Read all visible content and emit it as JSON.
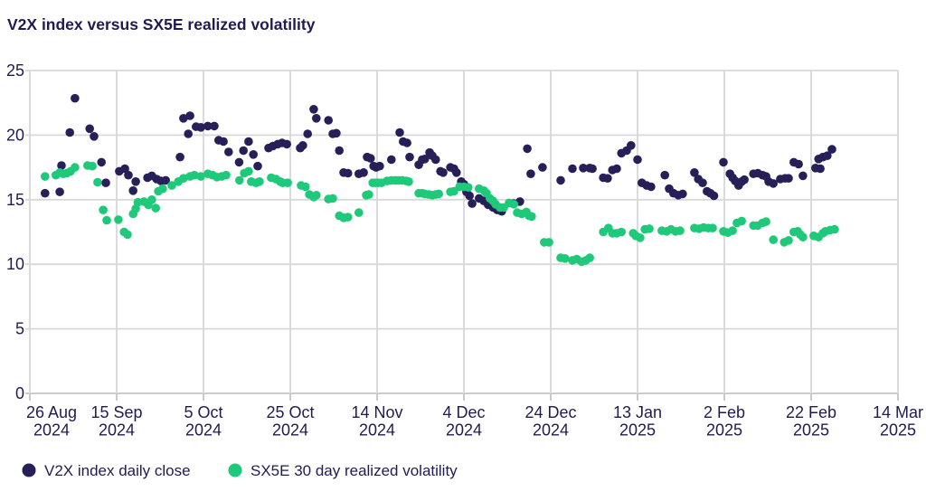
{
  "colors": {
    "navy": "#272058",
    "green": "#1ec97a",
    "text": "#221b52",
    "grid": "#d8d8d8",
    "background": "#ffffff"
  },
  "legend": {
    "items": [
      {
        "label": "V2X index daily close",
        "color": "#272058"
      },
      {
        "label": "SX5E 30 day realized volatility",
        "color": "#1ec97a"
      }
    ]
  },
  "chart_data": {
    "type": "scatter",
    "title": "V2X index versus SX5E realized volatility",
    "xlabel": "",
    "ylabel": "",
    "grid": true,
    "legend_position": "bottom-left",
    "marker": {
      "shape": "circle",
      "radius": 4.8
    },
    "y_axis": {
      "range": [
        0,
        25
      ],
      "ticks": [
        0,
        5,
        10,
        15,
        20,
        25
      ]
    },
    "x_axis": {
      "unit": "calendar days since 26 Aug 2024",
      "range": [
        0,
        200
      ],
      "ticks": [
        {
          "d": 0,
          "label": [
            "26 Aug",
            "2024"
          ]
        },
        {
          "d": 20,
          "label": [
            "15 Sep",
            "2024"
          ]
        },
        {
          "d": 40,
          "label": [
            "5 Oct",
            "2024"
          ]
        },
        {
          "d": 60,
          "label": [
            "25 Oct",
            "2024"
          ]
        },
        {
          "d": 80,
          "label": [
            "14 Nov",
            "2024"
          ]
        },
        {
          "d": 100,
          "label": [
            "4 Dec",
            "2024"
          ]
        },
        {
          "d": 120,
          "label": [
            "24 Dec",
            "2024"
          ]
        },
        {
          "d": 140,
          "label": [
            "13 Jan",
            "2025"
          ]
        },
        {
          "d": 160,
          "label": [
            "2 Feb",
            "2025"
          ]
        },
        {
          "d": 180,
          "label": [
            "22 Feb",
            "2025"
          ]
        },
        {
          "d": 200,
          "label": [
            "14 Mar",
            "2025"
          ]
        }
      ]
    },
    "series": [
      {
        "name": "V2X index daily close",
        "color": "#272058",
        "points": [
          [
            3.5,
            15.5
          ],
          [
            6.9,
            15.6
          ],
          [
            7.3,
            17.65
          ],
          [
            9.2,
            20.2
          ],
          [
            10.4,
            22.85
          ],
          [
            13.8,
            20.5
          ],
          [
            14.8,
            19.9
          ],
          [
            16.5,
            17.9
          ],
          [
            17.5,
            16.3
          ],
          [
            20.6,
            17.2
          ],
          [
            21.9,
            17.4
          ],
          [
            22.7,
            16.9
          ],
          [
            23.8,
            15.7
          ],
          [
            24.4,
            16.4
          ],
          [
            27.1,
            16.7
          ],
          [
            28.1,
            16.85
          ],
          [
            29.2,
            16.6
          ],
          [
            30.2,
            16.45
          ],
          [
            31.3,
            16.5
          ],
          [
            34.6,
            18.3
          ],
          [
            35.4,
            21.3
          ],
          [
            36.5,
            20.1
          ],
          [
            36.9,
            21.5
          ],
          [
            38.3,
            20.65
          ],
          [
            39.4,
            20.6
          ],
          [
            41,
            20.7
          ],
          [
            42.5,
            20.7
          ],
          [
            43.5,
            19.6
          ],
          [
            44.6,
            19.5
          ],
          [
            45.8,
            18.7
          ],
          [
            48.2,
            17.9
          ],
          [
            49.2,
            18.8
          ],
          [
            50.4,
            19.5
          ],
          [
            51.5,
            18.5
          ],
          [
            52.5,
            17.6
          ],
          [
            55,
            19
          ],
          [
            56,
            19.15
          ],
          [
            57.1,
            19.3
          ],
          [
            58.1,
            19.4
          ],
          [
            59.2,
            19.3
          ],
          [
            62.3,
            19
          ],
          [
            62.9,
            19.2
          ],
          [
            64,
            20.1
          ],
          [
            65.4,
            22
          ],
          [
            66,
            21.3
          ],
          [
            68.8,
            21.15
          ],
          [
            69.8,
            20.1
          ],
          [
            70.6,
            20.15
          ],
          [
            71.3,
            18.8
          ],
          [
            72.3,
            17.1
          ],
          [
            73.3,
            17.05
          ],
          [
            75.8,
            17
          ],
          [
            76.9,
            17.1
          ],
          [
            77.7,
            18.3
          ],
          [
            78.5,
            18.2
          ],
          [
            79.2,
            17.6
          ],
          [
            79.8,
            17.5
          ],
          [
            80.6,
            17.6
          ],
          [
            83.3,
            18.1
          ],
          [
            85.2,
            20.2
          ],
          [
            86,
            19.5
          ],
          [
            86.9,
            19.4
          ],
          [
            87.5,
            18.3
          ],
          [
            89.6,
            17.7
          ],
          [
            90.4,
            18.1
          ],
          [
            91,
            18.15
          ],
          [
            92.1,
            18.65
          ],
          [
            92.7,
            18.4
          ],
          [
            93.5,
            18.1
          ],
          [
            94.6,
            17.2
          ],
          [
            95.2,
            17.1
          ],
          [
            96.9,
            17.5
          ],
          [
            97.7,
            17.4
          ],
          [
            98.3,
            17.1
          ],
          [
            99.4,
            16.4
          ],
          [
            100,
            16.2
          ],
          [
            100.6,
            15.6
          ],
          [
            101.3,
            15.3
          ],
          [
            101.9,
            14.7
          ],
          [
            103.5,
            15.1
          ],
          [
            104.6,
            14.9
          ],
          [
            105.6,
            14.6
          ],
          [
            106.7,
            14.4
          ],
          [
            107.7,
            14.2
          ],
          [
            108.7,
            14.1
          ],
          [
            111.5,
            14.7
          ],
          [
            112.9,
            14.85
          ],
          [
            114.6,
            18.95
          ],
          [
            115.4,
            17
          ],
          [
            118.1,
            17.5
          ],
          [
            122.3,
            16.5
          ],
          [
            125,
            17.4
          ],
          [
            127.5,
            17.45
          ],
          [
            129,
            17.45
          ],
          [
            129.6,
            17.4
          ],
          [
            132.1,
            16.7
          ],
          [
            133.1,
            16.65
          ],
          [
            134.2,
            17.3
          ],
          [
            135.2,
            17.4
          ],
          [
            136.3,
            18.6
          ],
          [
            137.5,
            18.8
          ],
          [
            138.5,
            19.2
          ],
          [
            140,
            18.1
          ],
          [
            141,
            16.3
          ],
          [
            142.1,
            16.1
          ],
          [
            143.1,
            16
          ],
          [
            146.3,
            16.9
          ],
          [
            147.3,
            15.85
          ],
          [
            148.3,
            15.5
          ],
          [
            149.4,
            15.35
          ],
          [
            150.4,
            15.45
          ],
          [
            153.1,
            17.1
          ],
          [
            154,
            16.6
          ],
          [
            155,
            16.3
          ],
          [
            156,
            15.65
          ],
          [
            156.8,
            15.5
          ],
          [
            157.6,
            15.3
          ],
          [
            159.8,
            17.9
          ],
          [
            161.3,
            17
          ],
          [
            161.9,
            16.7
          ],
          [
            162.5,
            16.45
          ],
          [
            163.3,
            16.1
          ],
          [
            164,
            16.4
          ],
          [
            164.6,
            16.55
          ],
          [
            166.7,
            17
          ],
          [
            167.7,
            17.05
          ],
          [
            168.8,
            16.9
          ],
          [
            169.6,
            16.8
          ],
          [
            170.2,
            16.4
          ],
          [
            171.3,
            16.25
          ],
          [
            172.9,
            16.6
          ],
          [
            174,
            16.65
          ],
          [
            174.8,
            16.65
          ],
          [
            176,
            17.9
          ],
          [
            177.1,
            17.75
          ],
          [
            178.1,
            16.85
          ],
          [
            181,
            17.45
          ],
          [
            181.7,
            18.15
          ],
          [
            182.1,
            17.4
          ],
          [
            182.7,
            18.3
          ],
          [
            183.7,
            18.4
          ],
          [
            184.8,
            18.9
          ]
        ]
      },
      {
        "name": "SX5E 30 day realized volatility",
        "color": "#1ec97a",
        "points": [
          [
            3.5,
            16.8
          ],
          [
            6,
            16.9
          ],
          [
            6.9,
            17.1
          ],
          [
            7.7,
            17
          ],
          [
            8.5,
            17.05
          ],
          [
            9.4,
            17.2
          ],
          [
            10.4,
            17.5
          ],
          [
            13.3,
            17.65
          ],
          [
            14.4,
            17.6
          ],
          [
            15.6,
            16.35
          ],
          [
            16.9,
            14.2
          ],
          [
            17.7,
            13.4
          ],
          [
            20.4,
            13.45
          ],
          [
            21.7,
            12.5
          ],
          [
            22.5,
            12.3
          ],
          [
            23.8,
            13.9
          ],
          [
            24.4,
            14.3
          ],
          [
            24.9,
            14.8
          ],
          [
            26.3,
            14.85
          ],
          [
            27.3,
            14.6
          ],
          [
            28.1,
            15
          ],
          [
            29,
            14.35
          ],
          [
            29.6,
            15.65
          ],
          [
            30.6,
            15.85
          ],
          [
            32.7,
            16.1
          ],
          [
            34.2,
            16.4
          ],
          [
            35.4,
            16.65
          ],
          [
            36.9,
            16.8
          ],
          [
            37.9,
            16.9
          ],
          [
            39.4,
            16.8
          ],
          [
            41,
            17
          ],
          [
            42.1,
            16.9
          ],
          [
            43.1,
            16.75
          ],
          [
            44.2,
            16.8
          ],
          [
            45.2,
            16.9
          ],
          [
            48.3,
            16.5
          ],
          [
            49.4,
            17.05
          ],
          [
            50.4,
            17.2
          ],
          [
            51,
            16.4
          ],
          [
            52.1,
            16.3
          ],
          [
            52.9,
            16.4
          ],
          [
            55.6,
            16.7
          ],
          [
            56.7,
            16.6
          ],
          [
            57.7,
            16.4
          ],
          [
            58.3,
            16.3
          ],
          [
            59.4,
            16.3
          ],
          [
            62.5,
            16.1
          ],
          [
            63.5,
            16
          ],
          [
            64.4,
            15.4
          ],
          [
            65.4,
            15.2
          ],
          [
            66,
            15.35
          ],
          [
            68.8,
            15.05
          ],
          [
            69.8,
            15.1
          ],
          [
            71.3,
            13.75
          ],
          [
            72.3,
            13.6
          ],
          [
            73.3,
            13.65
          ],
          [
            75.8,
            14
          ],
          [
            77.5,
            15.35
          ],
          [
            78.1,
            15.4
          ],
          [
            79,
            16.3
          ],
          [
            79.6,
            16.3
          ],
          [
            80.2,
            16.3
          ],
          [
            81,
            16.3
          ],
          [
            82.3,
            16.45
          ],
          [
            83.3,
            16.5
          ],
          [
            84.2,
            16.5
          ],
          [
            85,
            16.5
          ],
          [
            85.8,
            16.5
          ],
          [
            86.7,
            16.45
          ],
          [
            87.3,
            16.4
          ],
          [
            89.6,
            15.5
          ],
          [
            90.4,
            15.5
          ],
          [
            91,
            15.45
          ],
          [
            91.9,
            15.4
          ],
          [
            92.7,
            15.35
          ],
          [
            93.5,
            15.4
          ],
          [
            94.2,
            15.45
          ],
          [
            96.9,
            15.6
          ],
          [
            97.7,
            15.65
          ],
          [
            99,
            16
          ],
          [
            100,
            16
          ],
          [
            101,
            15.95
          ],
          [
            103.5,
            15.85
          ],
          [
            104.6,
            15.7
          ],
          [
            105.2,
            15.5
          ],
          [
            106,
            15.1
          ],
          [
            106.7,
            14.9
          ],
          [
            107.3,
            14.65
          ],
          [
            108.3,
            14.4
          ],
          [
            109.2,
            14.4
          ],
          [
            110.4,
            14.75
          ],
          [
            111.5,
            14.65
          ],
          [
            112.3,
            14
          ],
          [
            113.3,
            13.9
          ],
          [
            114.4,
            14.05
          ],
          [
            115,
            13.75
          ],
          [
            115.6,
            13.7
          ],
          [
            118.5,
            11.7
          ],
          [
            119.6,
            11.7
          ],
          [
            122.3,
            10.5
          ],
          [
            123.3,
            10.45
          ],
          [
            125,
            10.3
          ],
          [
            126,
            10.4
          ],
          [
            127.1,
            10.2
          ],
          [
            128.1,
            10.3
          ],
          [
            129,
            10.5
          ],
          [
            132.1,
            12.5
          ],
          [
            133.3,
            12.8
          ],
          [
            134.2,
            12.4
          ],
          [
            135.2,
            12.4
          ],
          [
            136.3,
            12.5
          ],
          [
            139,
            12.4
          ],
          [
            139.6,
            12.2
          ],
          [
            140.6,
            12.05
          ],
          [
            141.7,
            12.7
          ],
          [
            142.7,
            12.75
          ],
          [
            145.6,
            12.6
          ],
          [
            146.7,
            12.55
          ],
          [
            147.7,
            12.7
          ],
          [
            148.8,
            12.55
          ],
          [
            149.8,
            12.6
          ],
          [
            153.1,
            12.8
          ],
          [
            154.2,
            12.75
          ],
          [
            155.2,
            12.85
          ],
          [
            156.3,
            12.8
          ],
          [
            157.3,
            12.8
          ],
          [
            159.8,
            12.55
          ],
          [
            160.8,
            12.45
          ],
          [
            161.9,
            12.6
          ],
          [
            162.9,
            13.2
          ],
          [
            164,
            13.35
          ],
          [
            166.7,
            13
          ],
          [
            167.7,
            13
          ],
          [
            168.8,
            13.2
          ],
          [
            169.6,
            13.3
          ],
          [
            171.3,
            11.9
          ],
          [
            173.8,
            11.7
          ],
          [
            174.8,
            11.85
          ],
          [
            176,
            12.5
          ],
          [
            176.9,
            12.55
          ],
          [
            177.5,
            12.3
          ],
          [
            178.1,
            12.1
          ],
          [
            180.6,
            12.2
          ],
          [
            181.7,
            12.1
          ],
          [
            182.7,
            12.4
          ],
          [
            183.3,
            12.55
          ],
          [
            184.4,
            12.65
          ],
          [
            185.4,
            12.7
          ]
        ]
      }
    ]
  }
}
